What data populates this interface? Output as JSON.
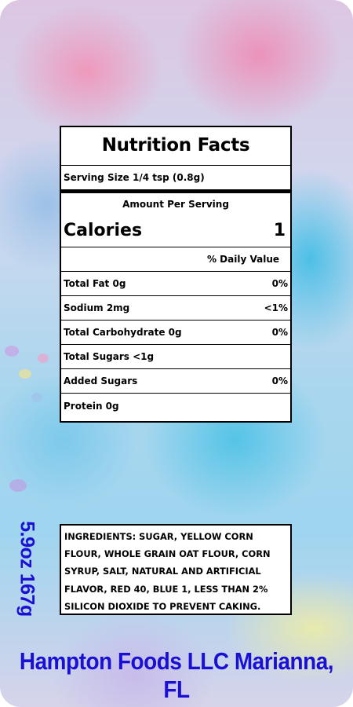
{
  "nutrition": {
    "title": "Nutrition Facts",
    "serving_size": "Serving Size 1/4 tsp (0.8g)",
    "amount_per_serving": "Amount Per Serving",
    "calories_label": "Calories",
    "calories_value": "1",
    "daily_value_header": "% Daily Value",
    "rows": [
      {
        "label": "Total Fat 0g",
        "value": "0%"
      },
      {
        "label": "Sodium 2mg",
        "value": "<1%"
      },
      {
        "label": "Total Carbohydrate 0g",
        "value": "0%"
      },
      {
        "label": "Total Sugars <1g",
        "value": ""
      },
      {
        "label": "Added Sugars",
        "value": "0%"
      },
      {
        "label": "Protein 0g",
        "value": ""
      }
    ]
  },
  "ingredients": {
    "lines": [
      "INGREDIENTS: SUGAR, YELLOW CORN",
      "FLOUR, WHOLE GRAIN OAT FLOUR, CORN",
      "SYRUP, SALT, NATURAL AND ARTIFICIAL",
      "FLAVOR, RED 40, BLUE 1, LESS THAN 2%",
      "SILICON DIOXIDE TO PREVENT CAKING."
    ]
  },
  "net_weight": "5.9oz 167g",
  "manufacturer": "Hampton Foods LLC Marianna, FL",
  "colors": {
    "brand_text": "#1a10d5",
    "cotton_candy_pink": "#f096b9",
    "cotton_candy_blue": "#50c3e6"
  }
}
